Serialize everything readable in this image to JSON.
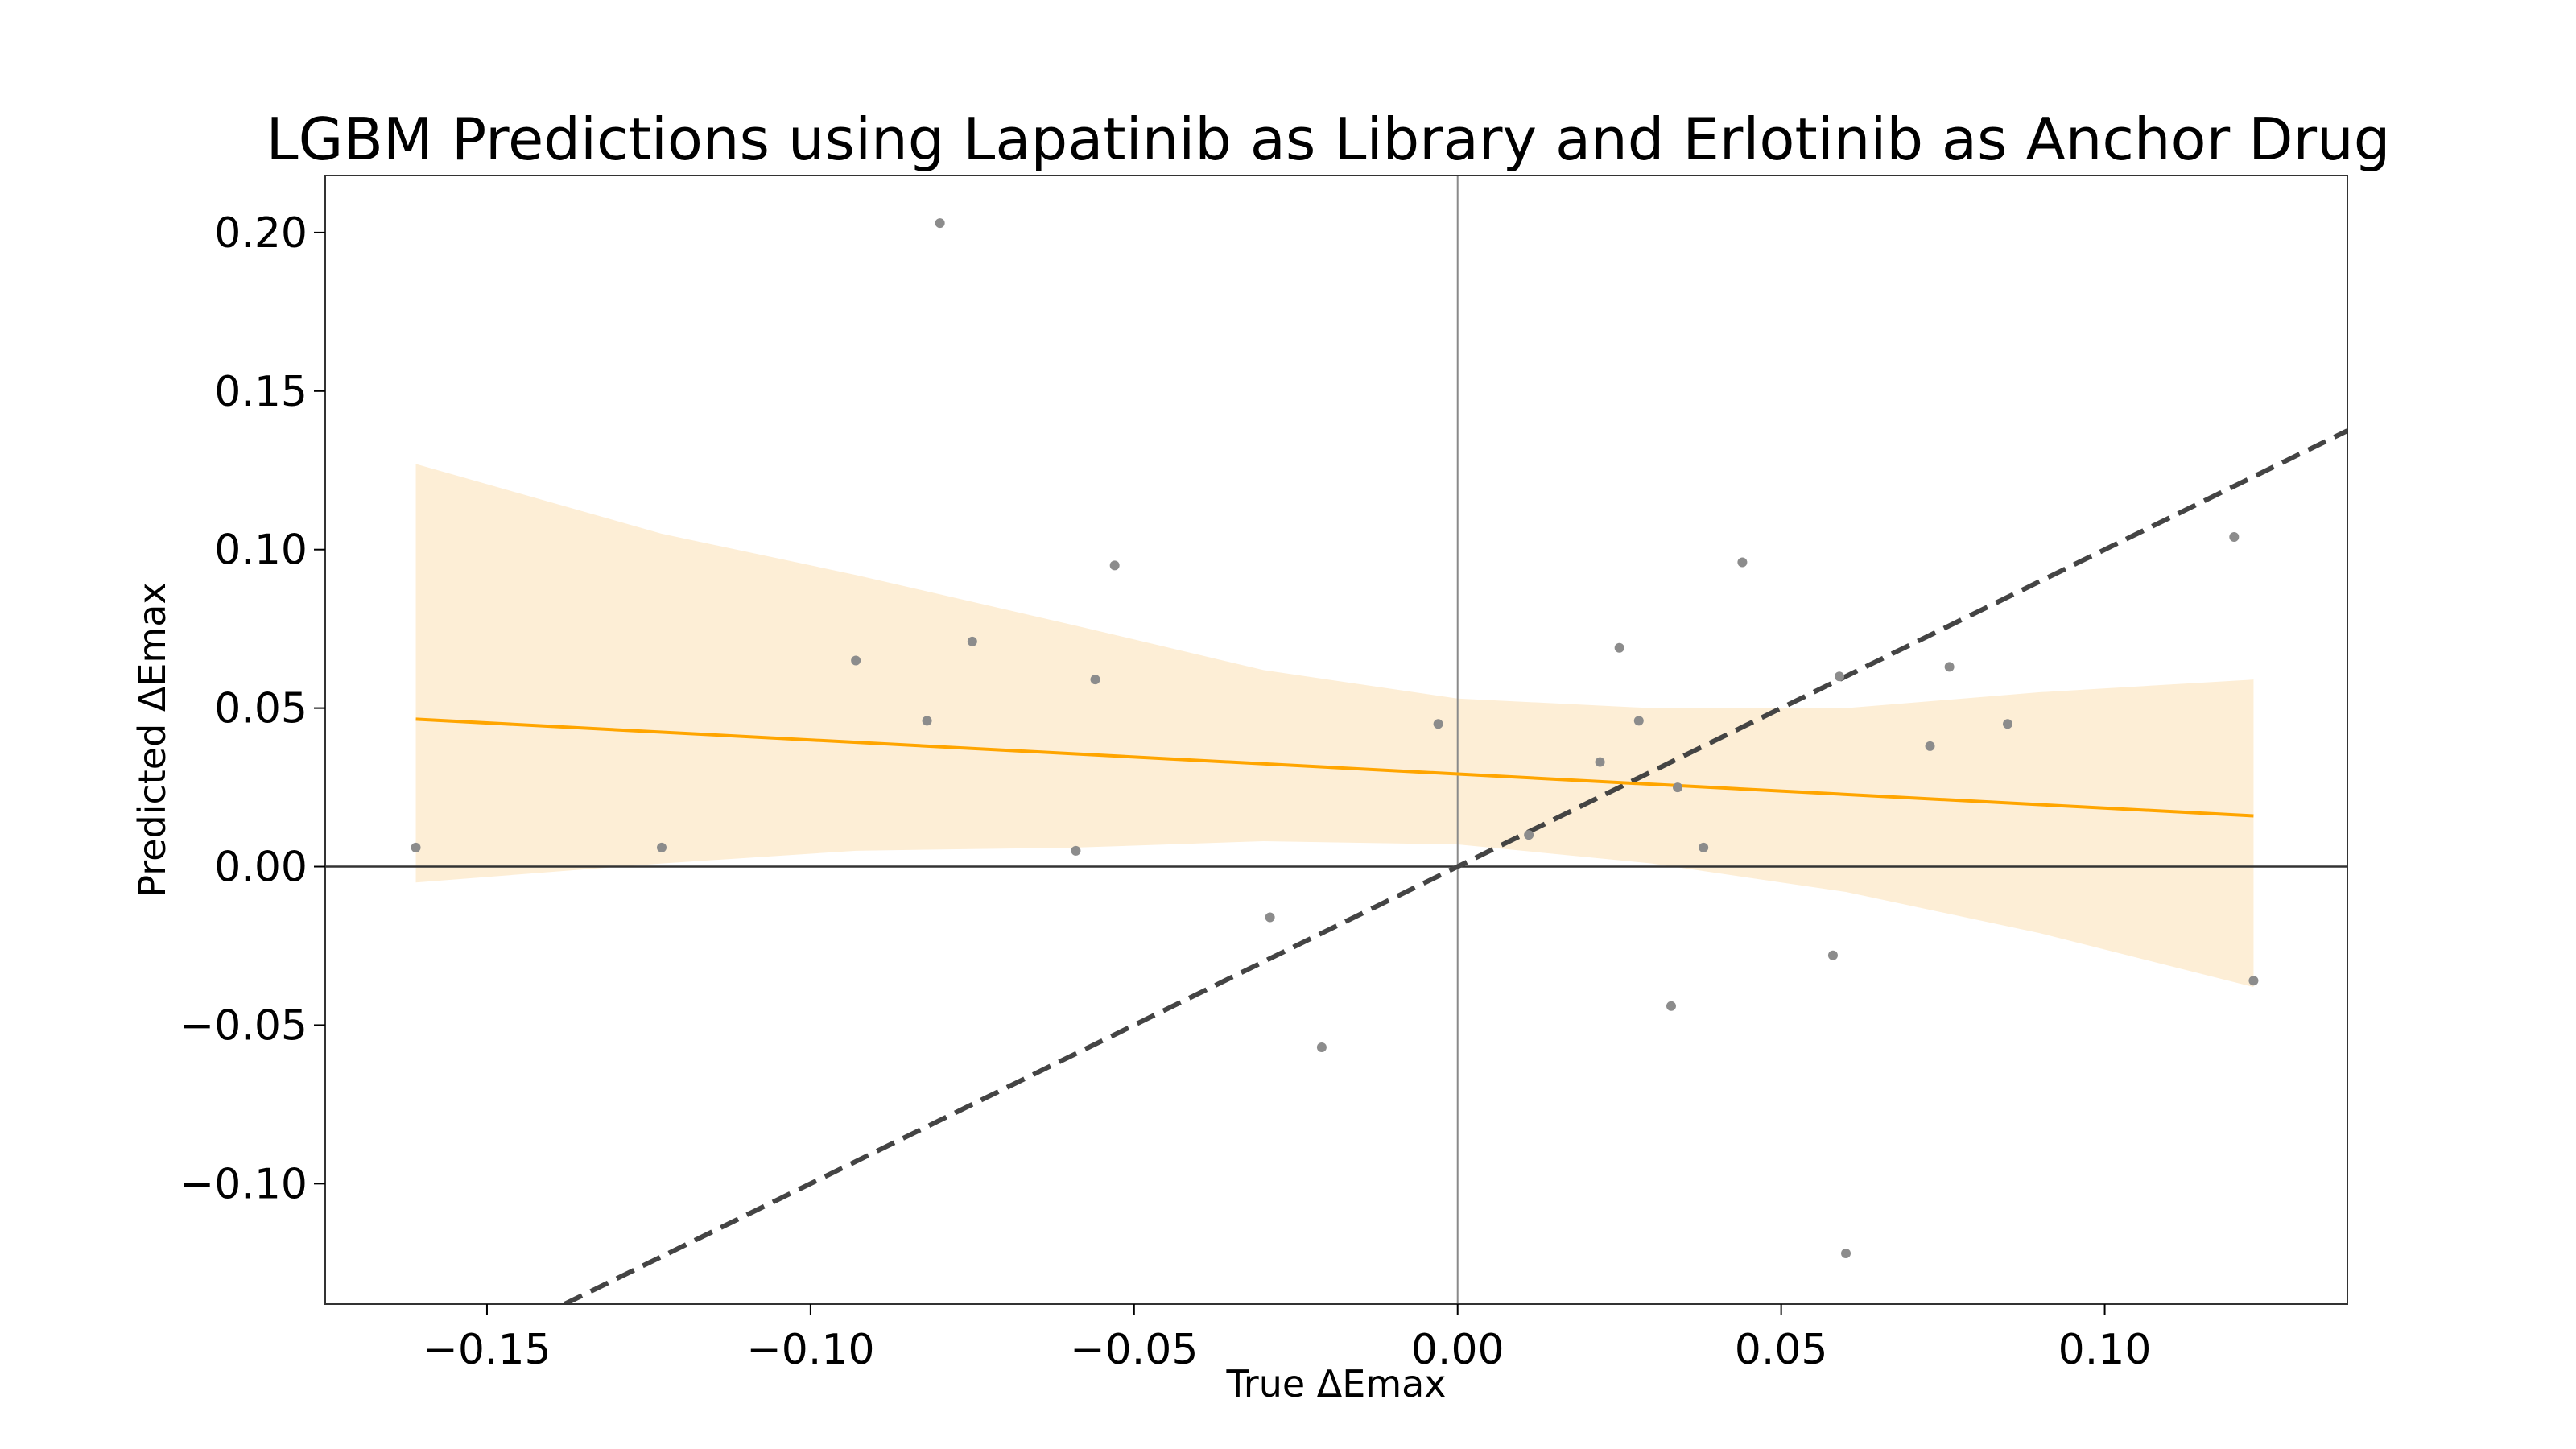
{
  "chart_data": {
    "type": "scatter",
    "title": "LGBM Predictions using Lapatinib as Library and Erlotinib as Anchor Drug",
    "xlabel": "True ΔEmax",
    "ylabel": "Predicted ΔEmax",
    "xlim": [
      -0.175,
      0.1375
    ],
    "ylim": [
      -0.138,
      0.218
    ],
    "xticks": [
      -0.15,
      -0.1,
      -0.05,
      0.0,
      0.05,
      0.1
    ],
    "xtick_labels": [
      "−0.15",
      "−0.10",
      "−0.05",
      "0.00",
      "0.05",
      "0.10"
    ],
    "yticks": [
      -0.1,
      -0.05,
      0.0,
      0.05,
      0.1,
      0.15,
      0.2
    ],
    "ytick_labels": [
      "−0.10",
      "−0.05",
      "0.00",
      "0.05",
      "0.10",
      "0.15",
      "0.20"
    ],
    "grid": false,
    "legend": "none",
    "series": [
      {
        "points": [
          [
            -0.161,
            0.006
          ],
          [
            -0.123,
            0.006
          ],
          [
            -0.093,
            0.065
          ],
          [
            -0.082,
            0.046
          ],
          [
            -0.08,
            0.203
          ],
          [
            -0.075,
            0.071
          ],
          [
            -0.059,
            0.005
          ],
          [
            -0.056,
            0.059
          ],
          [
            -0.053,
            0.095
          ],
          [
            -0.029,
            -0.016
          ],
          [
            -0.021,
            -0.057
          ],
          [
            -0.003,
            0.045
          ],
          [
            0.011,
            0.01
          ],
          [
            0.022,
            0.033
          ],
          [
            0.025,
            0.069
          ],
          [
            0.028,
            0.046
          ],
          [
            0.033,
            -0.044
          ],
          [
            0.034,
            0.025
          ],
          [
            0.038,
            0.006
          ],
          [
            0.044,
            0.096
          ],
          [
            0.058,
            -0.028
          ],
          [
            0.06,
            -0.122
          ],
          [
            0.059,
            0.06
          ],
          [
            0.073,
            0.038
          ],
          [
            0.076,
            0.063
          ],
          [
            0.085,
            0.045
          ],
          [
            0.12,
            0.104
          ],
          [
            0.123,
            -0.036
          ]
        ]
      }
    ],
    "regression_line": {
      "x_range": [
        -0.161,
        0.123
      ],
      "y_values": [
        0.0465,
        0.016
      ],
      "ci_lower": [
        [
          -0.161,
          -0.005
        ],
        [
          -0.123,
          0.001
        ],
        [
          -0.093,
          0.005
        ],
        [
          -0.059,
          0.006
        ],
        [
          -0.03,
          0.008
        ],
        [
          0.0,
          0.007
        ],
        [
          0.03,
          0.001
        ],
        [
          0.06,
          -0.008
        ],
        [
          0.09,
          -0.021
        ],
        [
          0.123,
          -0.038
        ]
      ],
      "ci_upper": [
        [
          -0.161,
          0.127
        ],
        [
          -0.123,
          0.105
        ],
        [
          -0.093,
          0.092
        ],
        [
          -0.059,
          0.076
        ],
        [
          -0.03,
          0.062
        ],
        [
          0.0,
          0.053
        ],
        [
          0.03,
          0.05
        ],
        [
          0.06,
          0.05
        ],
        [
          0.09,
          0.055
        ],
        [
          0.123,
          0.059
        ]
      ],
      "color": "#ffa500",
      "ci_color": "#fdeed6"
    },
    "identity_line": {
      "color": "#444444",
      "dashed": true
    },
    "reference_lines": {
      "x": 0,
      "y": 0
    },
    "point_color": "#8c8c8c"
  }
}
